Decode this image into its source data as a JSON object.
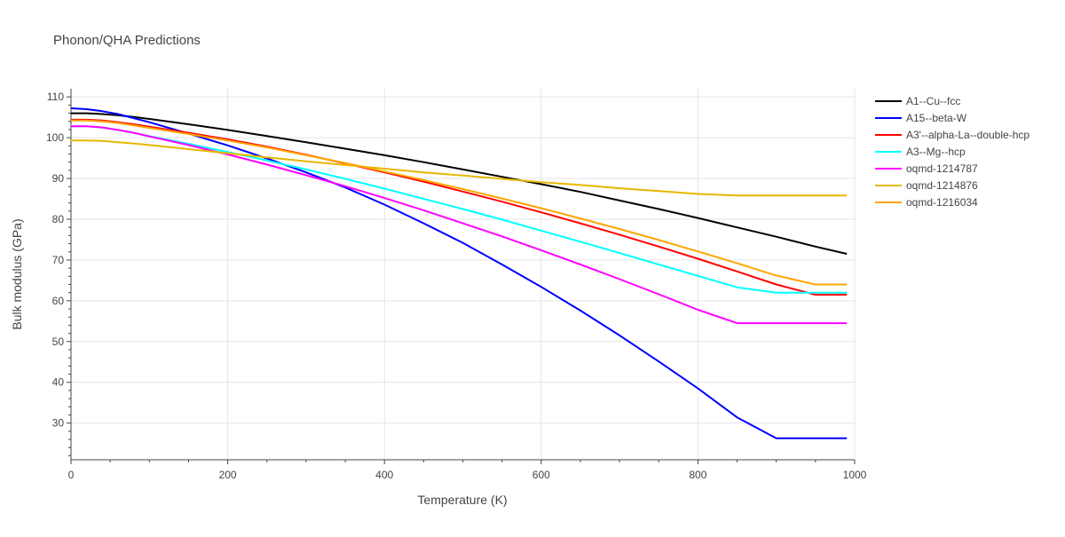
{
  "chart_data": {
    "type": "line",
    "title": "Phonon/QHA Predictions",
    "xlabel": "Temperature (K)",
    "ylabel": "Bulk modulus (GPa)",
    "xlim": [
      0,
      1000
    ],
    "ylim": [
      21,
      112
    ],
    "xticks": [
      0,
      200,
      400,
      600,
      800,
      1000
    ],
    "yticks": [
      30,
      40,
      50,
      60,
      70,
      80,
      90,
      100,
      110
    ],
    "grid": true,
    "legend_position": "top-right",
    "x": [
      0,
      20,
      40,
      60,
      80,
      100,
      150,
      200,
      250,
      300,
      350,
      400,
      450,
      500,
      550,
      600,
      650,
      700,
      750,
      800,
      850,
      900,
      950,
      990
    ],
    "series": [
      {
        "name": "A1--Cu--fcc",
        "color": "#000000",
        "values": [
          106.0,
          106.0,
          105.8,
          105.5,
          105.1,
          104.6,
          103.3,
          101.9,
          100.4,
          98.9,
          97.3,
          95.7,
          94.0,
          92.2,
          90.4,
          88.6,
          86.7,
          84.6,
          82.5,
          80.3,
          78.0,
          75.7,
          73.3,
          71.5
        ]
      },
      {
        "name": "A15--beta-W",
        "color": "#0000ff",
        "values": [
          107.2,
          107.0,
          106.5,
          105.8,
          104.8,
          103.8,
          101.0,
          98.1,
          94.9,
          91.5,
          87.8,
          83.6,
          79.0,
          74.2,
          68.9,
          63.4,
          57.6,
          51.5,
          45.1,
          38.5,
          31.4,
          26.3,
          26.3,
          26.3
        ]
      },
      {
        "name": "A3'--alpha-La--double-hcp",
        "color": "#ff0000",
        "values": [
          104.4,
          104.4,
          104.2,
          103.8,
          103.3,
          102.7,
          101.2,
          99.6,
          97.8,
          95.8,
          93.7,
          91.5,
          89.2,
          86.8,
          84.3,
          81.7,
          79.0,
          76.2,
          73.3,
          70.3,
          67.2,
          64.0,
          61.5,
          61.5
        ]
      },
      {
        "name": "A3--Mg--hcp",
        "color": "#00ffff",
        "values": [
          102.8,
          102.8,
          102.5,
          101.9,
          101.2,
          100.4,
          98.5,
          96.5,
          94.4,
          92.2,
          89.9,
          87.5,
          85.0,
          82.5,
          79.9,
          77.2,
          74.5,
          71.7,
          68.9,
          66.1,
          63.3,
          62.0,
          62.0,
          62.0
        ]
      },
      {
        "name": "oqmd-1214787",
        "color": "#ff00ff",
        "values": [
          102.8,
          102.8,
          102.5,
          101.9,
          101.2,
          100.3,
          98.2,
          95.9,
          93.4,
          90.8,
          88.1,
          85.2,
          82.2,
          79.0,
          75.8,
          72.4,
          68.9,
          65.3,
          61.6,
          57.8,
          54.5,
          54.5,
          54.5,
          54.5
        ]
      },
      {
        "name": "oqmd-1214876",
        "color": "#e6b800",
        "values": [
          99.3,
          99.3,
          99.2,
          98.9,
          98.6,
          98.2,
          97.2,
          96.2,
          95.2,
          94.2,
          93.3,
          92.4,
          91.5,
          90.7,
          89.9,
          89.1,
          88.4,
          87.6,
          86.9,
          86.2,
          85.8,
          85.8,
          85.8,
          85.8
        ]
      },
      {
        "name": "oqmd-1216034",
        "color": "#ffa500",
        "values": [
          104.2,
          104.2,
          104.0,
          103.6,
          103.0,
          102.4,
          100.9,
          99.3,
          97.6,
          95.7,
          93.8,
          91.7,
          89.6,
          87.4,
          85.1,
          82.7,
          80.2,
          77.6,
          74.9,
          72.1,
          69.2,
          66.2,
          64.0,
          64.0
        ]
      }
    ]
  }
}
